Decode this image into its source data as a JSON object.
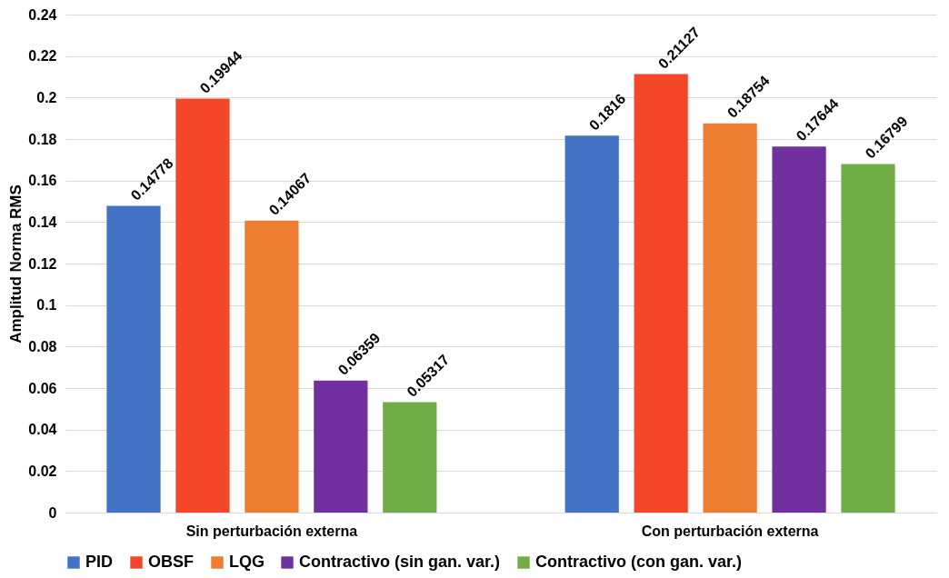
{
  "chart_data": {
    "type": "bar",
    "ylabel": "Amplitud Norma RMS",
    "categories": [
      "Sin perturbación externa",
      "Con perturbación externa"
    ],
    "series": [
      {
        "name": "PID",
        "color": "#4472c4",
        "values": [
          0.14778,
          0.1816
        ]
      },
      {
        "name": "OBSF",
        "color": "#f4472a",
        "values": [
          0.19944,
          0.21127
        ]
      },
      {
        "name": "LQG",
        "color": "#ed7d31",
        "values": [
          0.14067,
          0.18754
        ]
      },
      {
        "name": "Contractivo (sin gan. var.)",
        "color": "#7030a0",
        "values": [
          0.06359,
          0.17644
        ]
      },
      {
        "name": "Contractivo (con gan. var.)",
        "color": "#70ad47",
        "values": [
          0.05317,
          0.16799
        ]
      }
    ],
    "ylim": [
      0,
      0.24
    ],
    "yticks": [
      0,
      0.02,
      0.04,
      0.06,
      0.08,
      0.1,
      0.12,
      0.14,
      0.16,
      0.18,
      0.2,
      0.22,
      0.24
    ],
    "grid": "y",
    "legend": "bottom",
    "data_labels": true
  }
}
